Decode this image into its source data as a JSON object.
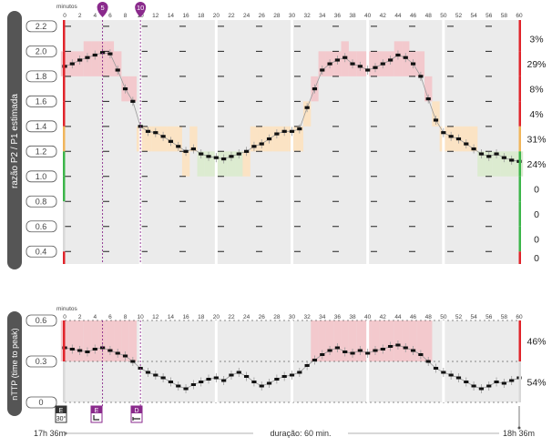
{
  "top_chart": {
    "axis_title": "razão P2 / P1 estimada",
    "minutes_label": "minutos",
    "y_ticks": [
      "2.2",
      "2.0",
      "1.8",
      "1.6",
      "1.4",
      "1.2",
      "1.0",
      "0.8",
      "0.6",
      "0.4"
    ],
    "x_ticks": [
      "0",
      "2",
      "4",
      "6",
      "8",
      "10",
      "12",
      "14",
      "16",
      "18",
      "20",
      "22",
      "24",
      "26",
      "28",
      "30",
      "32",
      "34",
      "36",
      "38",
      "40",
      "42",
      "44",
      "46",
      "48",
      "50",
      "52",
      "54",
      "56",
      "58",
      "60"
    ],
    "markers": [
      "5",
      "10"
    ],
    "band_percentages": [
      "3%",
      "29%",
      "8%",
      "4%",
      "31%",
      "24%",
      "0",
      "0",
      "0",
      "0"
    ]
  },
  "bottom_chart": {
    "axis_title": "nTTP (time to peak)",
    "minutes_label": "minutos",
    "y_ticks": [
      "0.6",
      "0.3",
      "0"
    ],
    "x_ticks": [
      "0",
      "2",
      "4",
      "6",
      "8",
      "10",
      "12",
      "14",
      "16",
      "18",
      "20",
      "22",
      "24",
      "26",
      "28",
      "30",
      "32",
      "34",
      "36",
      "38",
      "40",
      "42",
      "44",
      "46",
      "48",
      "50",
      "52",
      "54",
      "56",
      "58",
      "60"
    ],
    "band_percentages": [
      "46%",
      "54%"
    ]
  },
  "footer": {
    "badge_start": "E",
    "badge_start_value": "30°",
    "badge_e": "E",
    "badge_d": "D",
    "start_time": "17h 36m",
    "duration": "duração: 60 min.",
    "end_time": "18h 36m"
  },
  "colors": {
    "red": "#f3c9cd",
    "orange": "#fbe3c4",
    "green": "#dcebd0",
    "panel": "#ebebeb",
    "marker": "#8a2a8c",
    "pill": "#555555",
    "red_line": "#e0242b",
    "green_line": "#3cb54a",
    "orange_line": "#f0b55b"
  },
  "chart_data": [
    {
      "type": "line",
      "title": "",
      "xlabel": "minutos",
      "ylabel": "razão P2 / P1 estimada",
      "xlim": [
        0,
        60
      ],
      "ylim": [
        0.3,
        2.25
      ],
      "x": [
        0,
        1,
        2,
        3,
        4,
        5,
        6,
        7,
        8,
        9,
        10,
        11,
        12,
        13,
        14,
        15,
        16,
        17,
        18,
        19,
        20,
        21,
        22,
        23,
        24,
        25,
        26,
        27,
        28,
        29,
        30,
        31,
        32,
        33,
        34,
        35,
        36,
        37,
        38,
        39,
        40,
        41,
        42,
        43,
        44,
        45,
        46,
        47,
        48,
        49,
        50,
        51,
        52,
        53,
        54,
        55,
        56,
        57,
        58,
        59,
        60
      ],
      "series": [
        {
          "values": [
            1.88,
            1.9,
            1.93,
            1.95,
            1.97,
            1.99,
            1.98,
            1.85,
            1.7,
            1.6,
            1.4,
            1.36,
            1.35,
            1.32,
            1.28,
            1.24,
            1.2,
            1.22,
            1.18,
            1.16,
            1.15,
            1.14,
            1.16,
            1.18,
            1.2,
            1.24,
            1.26,
            1.3,
            1.34,
            1.36,
            1.36,
            1.38,
            1.55,
            1.7,
            1.85,
            1.9,
            1.93,
            1.95,
            1.9,
            1.88,
            1.85,
            1.87,
            1.9,
            1.93,
            1.97,
            1.95,
            1.9,
            1.8,
            1.62,
            1.45,
            1.35,
            1.32,
            1.3,
            1.26,
            1.22,
            1.18,
            1.16,
            1.18,
            1.15,
            1.13,
            1.12
          ]
        }
      ],
      "bands": [
        {
          "range": [
            2.0,
            2.2
          ],
          "percent": "3%"
        },
        {
          "range": [
            1.8,
            2.0
          ],
          "percent": "29%"
        },
        {
          "range": [
            1.6,
            1.8
          ],
          "percent": "8%"
        },
        {
          "range": [
            1.4,
            1.6
          ],
          "percent": "4%"
        },
        {
          "range": [
            1.2,
            1.4
          ],
          "percent": "31%"
        },
        {
          "range": [
            1.0,
            1.2
          ],
          "percent": "24%"
        },
        {
          "range": [
            0.8,
            1.0
          ],
          "percent": "0"
        },
        {
          "range": [
            0.6,
            0.8
          ],
          "percent": "0"
        },
        {
          "range": [
            0.4,
            0.6
          ],
          "percent": "0"
        },
        {
          "range": [
            0.3,
            0.4
          ],
          "percent": "0"
        }
      ],
      "markers": [
        5,
        10
      ],
      "grid": true
    },
    {
      "type": "line",
      "title": "",
      "xlabel": "minutos",
      "ylabel": "nTTP (time to peak)",
      "xlim": [
        0,
        60
      ],
      "ylim": [
        0,
        0.6
      ],
      "x": [
        0,
        1,
        2,
        3,
        4,
        5,
        6,
        7,
        8,
        9,
        10,
        11,
        12,
        13,
        14,
        15,
        16,
        17,
        18,
        19,
        20,
        21,
        22,
        23,
        24,
        25,
        26,
        27,
        28,
        29,
        30,
        31,
        32,
        33,
        34,
        35,
        36,
        37,
        38,
        39,
        40,
        41,
        42,
        43,
        44,
        45,
        46,
        47,
        48,
        49,
        50,
        51,
        52,
        53,
        54,
        55,
        56,
        57,
        58,
        59,
        60
      ],
      "series": [
        {
          "values": [
            0.4,
            0.39,
            0.38,
            0.37,
            0.39,
            0.4,
            0.38,
            0.36,
            0.34,
            0.3,
            0.25,
            0.22,
            0.2,
            0.18,
            0.15,
            0.12,
            0.1,
            0.13,
            0.15,
            0.17,
            0.18,
            0.16,
            0.2,
            0.22,
            0.19,
            0.15,
            0.12,
            0.14,
            0.17,
            0.19,
            0.2,
            0.22,
            0.27,
            0.31,
            0.35,
            0.38,
            0.4,
            0.37,
            0.36,
            0.38,
            0.36,
            0.38,
            0.39,
            0.41,
            0.42,
            0.4,
            0.38,
            0.35,
            0.3,
            0.25,
            0.22,
            0.2,
            0.18,
            0.15,
            0.12,
            0.1,
            0.12,
            0.15,
            0.14,
            0.16,
            0.18
          ]
        }
      ],
      "bands": [
        {
          "range": [
            0.3,
            0.6
          ],
          "percent": "46%"
        },
        {
          "range": [
            0,
            0.3
          ],
          "percent": "54%"
        }
      ],
      "markers": [
        5,
        10
      ],
      "grid": true
    }
  ]
}
